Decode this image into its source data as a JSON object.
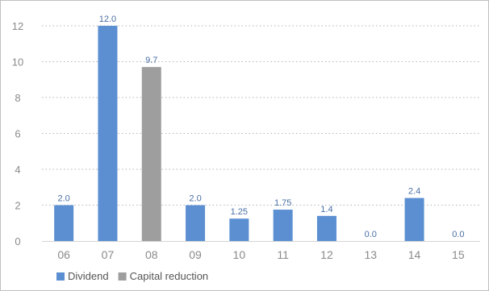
{
  "chart_data": {
    "type": "bar",
    "categories": [
      "06",
      "07",
      "08",
      "09",
      "10",
      "11",
      "12",
      "13",
      "14",
      "15"
    ],
    "series": [
      {
        "name": "Dividend",
        "values": [
          2.0,
          12.0,
          null,
          2.0,
          1.25,
          1.75,
          1.4,
          0.0,
          2.4,
          0.0
        ],
        "color": "#5b8fd1"
      },
      {
        "name": "Capital reduction",
        "values": [
          null,
          null,
          9.7,
          null,
          null,
          null,
          null,
          null,
          null,
          null
        ],
        "color": "#9e9e9e"
      }
    ],
    "data_labels": [
      "2.0",
      "12.0",
      "9.7",
      "2.0",
      "1.25",
      "1.75",
      "1.4",
      "0.0",
      "2.4",
      "0.0"
    ],
    "yticks": [
      "0",
      "2",
      "4",
      "6",
      "8",
      "10",
      "12"
    ],
    "ylim": [
      0,
      12
    ],
    "grid": true,
    "legend": "bottom-left",
    "title": "",
    "xlabel": "",
    "ylabel": ""
  }
}
